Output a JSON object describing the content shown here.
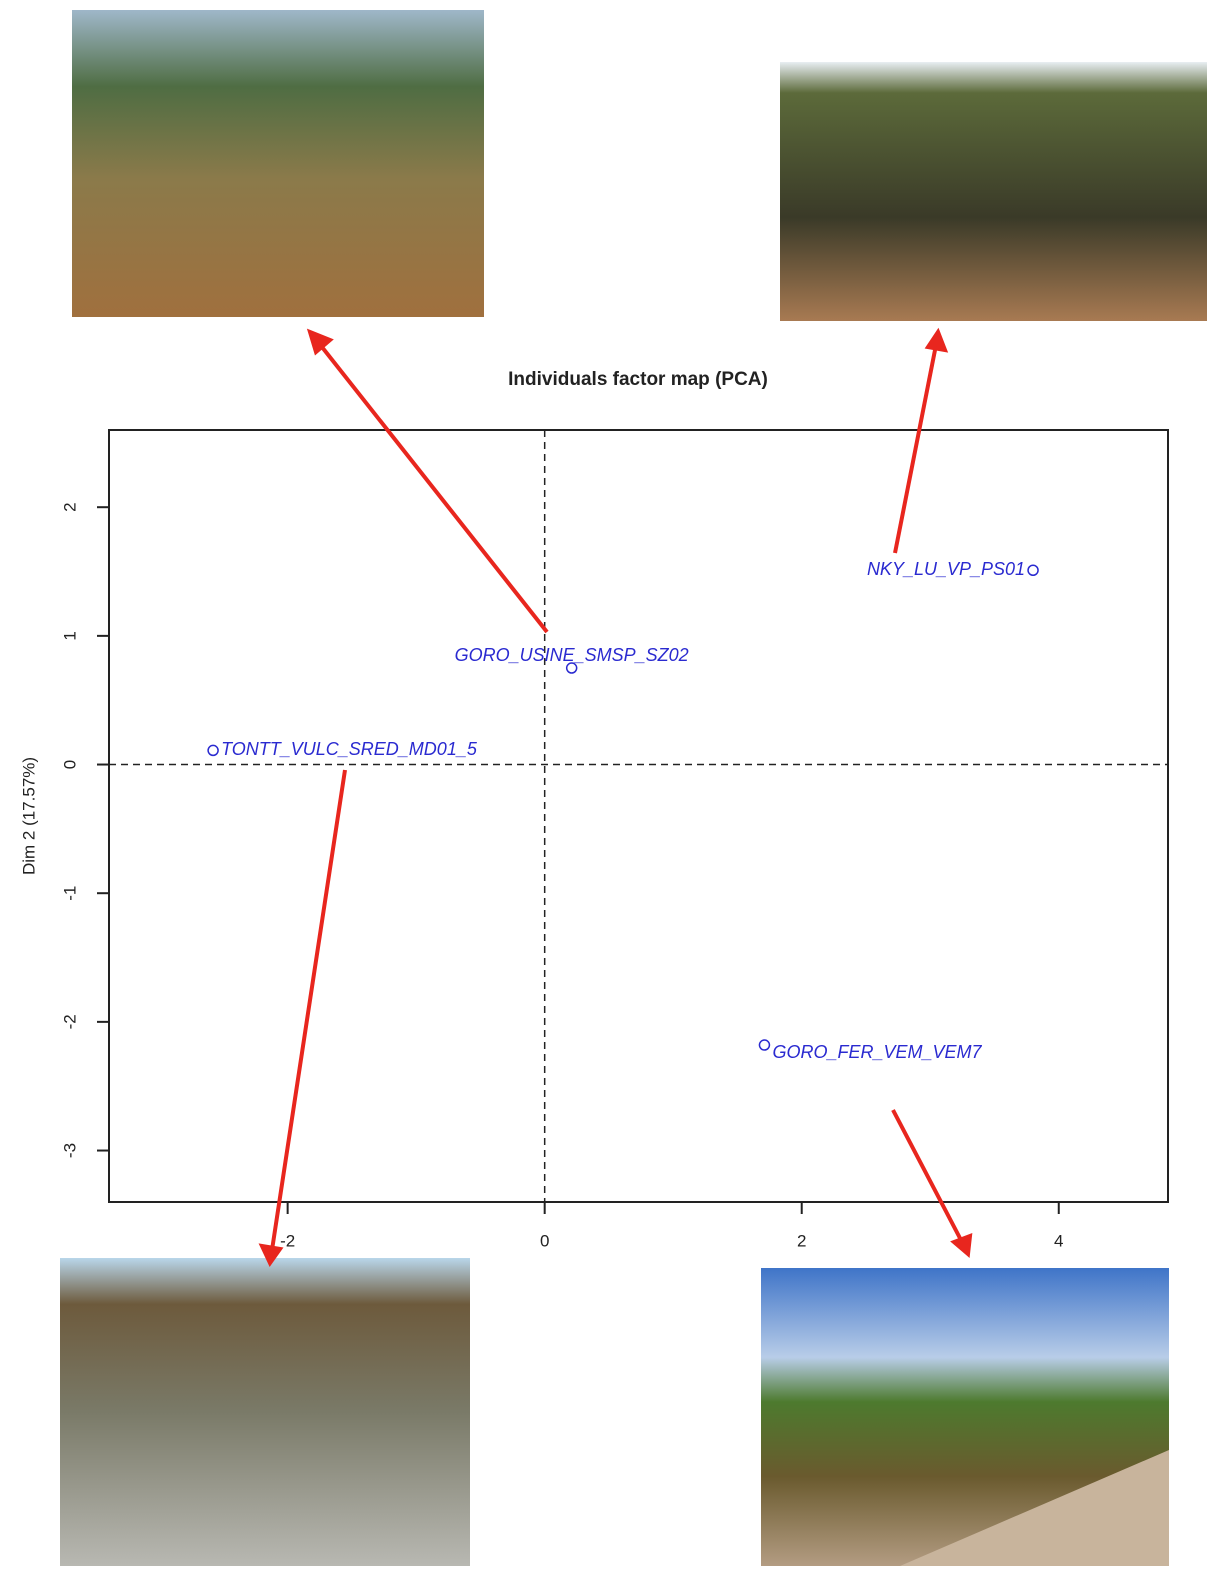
{
  "chart_data": {
    "type": "scatter",
    "title": "Individuals factor map (PCA)",
    "y_label": "Dim 2 (17.57%)",
    "xlim": [
      -3.39,
      4.85
    ],
    "ylim": [
      -3.4,
      2.6
    ],
    "xticks": [
      -2,
      0,
      2,
      4
    ],
    "yticks": [
      -3,
      -2,
      -1,
      0,
      1,
      2
    ],
    "hline": 0,
    "vline": 0,
    "color": "#2a2ad0",
    "labels": [
      "GORO_USINE_SMSP_SZ02",
      "NKY_LU_VP_PS01",
      "TONTT_VULC_SRED_MD01_5",
      "GORO_FER_VEM_VEM7"
    ],
    "x": [
      0.21,
      3.8,
      -2.58,
      1.71
    ],
    "y": [
      0.75,
      1.51,
      0.11,
      -2.18
    ]
  }
}
